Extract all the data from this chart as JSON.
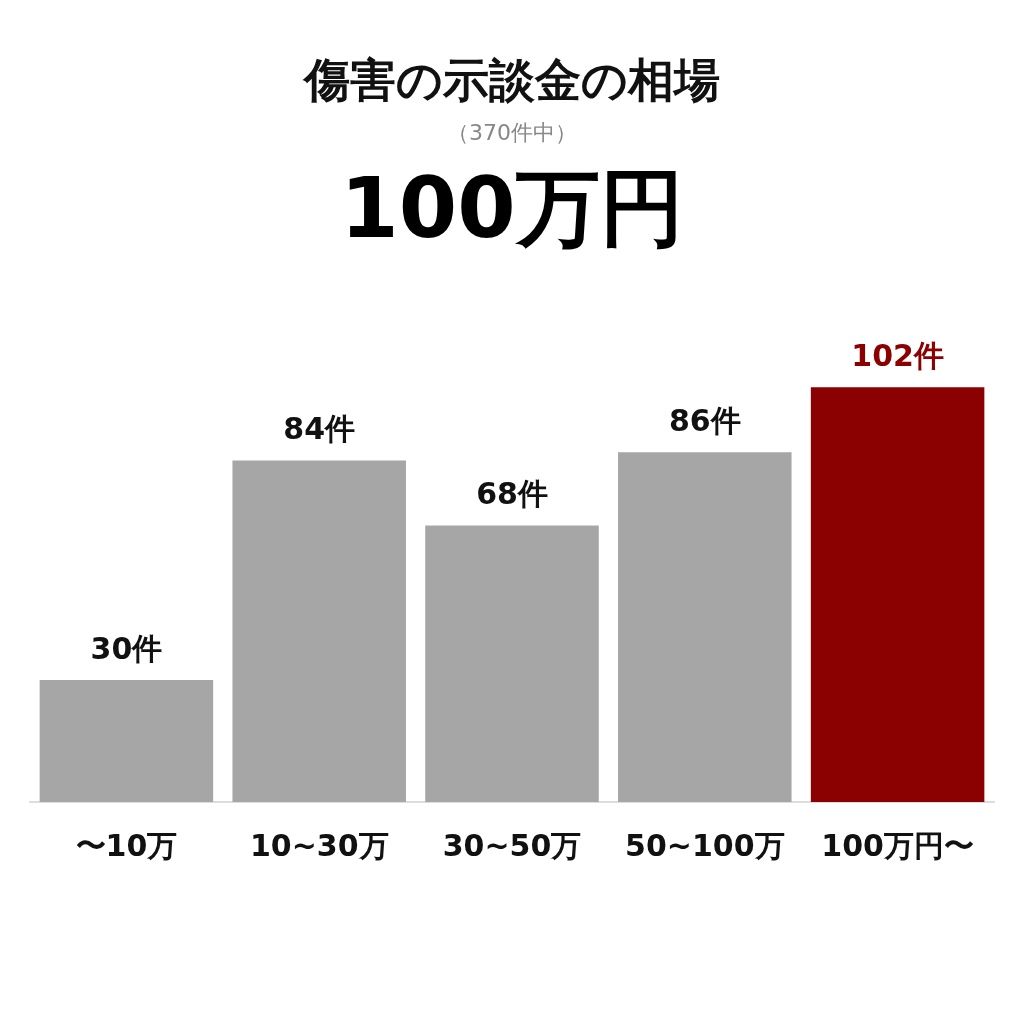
{
  "chart_data": {
    "type": "bar",
    "title": "傷害の示談金の相場",
    "subtitle": "（370件中）",
    "annotations": [
      "100万円"
    ],
    "categories": [
      "〜10万",
      "10~30万",
      "30~50万",
      "50~100万",
      "100万円〜"
    ],
    "values": [
      30,
      84,
      68,
      86,
      102
    ],
    "colors": [
      "#a6a6a6",
      "#a6a6a6",
      "#a6a6a6",
      "#a6a6a6",
      "#8b0000"
    ],
    "value_labels": [
      "30件",
      "84件",
      "68件",
      "86件",
      "102件"
    ],
    "tick_labels": "x",
    "grid": false,
    "legend": false
  }
}
